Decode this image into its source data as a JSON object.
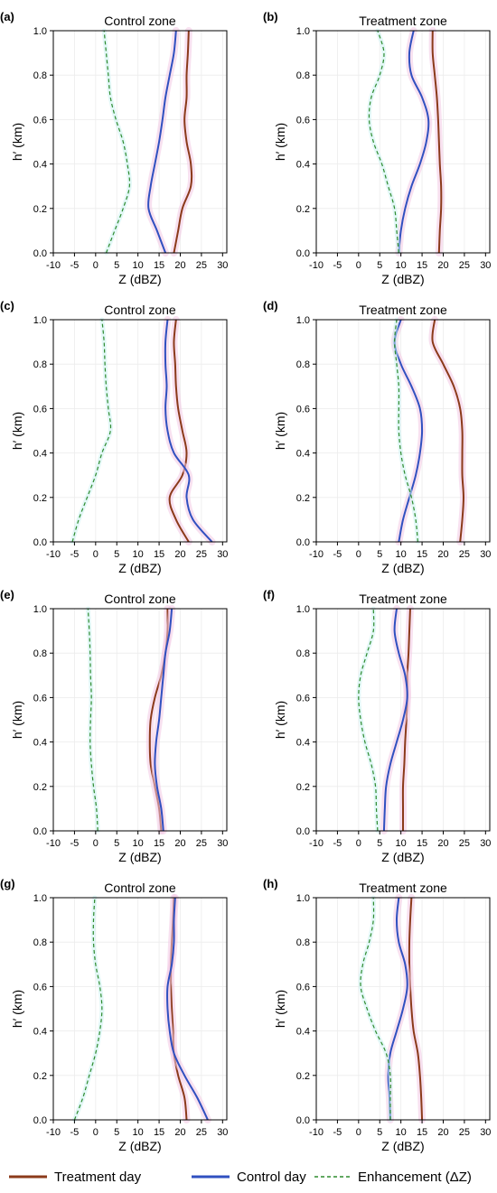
{
  "chart_data": [
    {
      "type": "line",
      "panel": "(a)",
      "title": "Control zone",
      "xlabel": "Z (dBZ)",
      "ylabel": "h′ (km)",
      "xlim": [
        -10,
        31
      ],
      "ylim": [
        0,
        1
      ],
      "xticks": [
        "-10",
        "-5",
        "0",
        "5",
        "10",
        "15",
        "20",
        "25",
        "30"
      ],
      "yticks": [
        "0.0",
        "0.2",
        "0.4",
        "0.6",
        "0.8",
        "1.0"
      ],
      "grid": true,
      "series": [
        {
          "name": "Treatment day",
          "color": "#8B3A1A",
          "dash": "",
          "y": [
            0,
            0.1,
            0.2,
            0.3,
            0.4,
            0.5,
            0.6,
            0.7,
            0.8,
            0.9,
            1.0
          ],
          "x": [
            18.5,
            19.5,
            20.5,
            22.5,
            22.5,
            21.5,
            21.0,
            21.5,
            21.5,
            21.8,
            22.0
          ]
        },
        {
          "name": "Control day",
          "color": "#3050C0",
          "dash": "",
          "y": [
            0,
            0.1,
            0.2,
            0.3,
            0.4,
            0.5,
            0.6,
            0.7,
            0.8,
            0.9,
            1.0
          ],
          "x": [
            16.5,
            14.5,
            12.5,
            13.0,
            14.0,
            15.0,
            15.8,
            16.5,
            17.5,
            18.5,
            19.0
          ]
        },
        {
          "name": "Enhancement (ΔZ)",
          "color": "#2E8B2E",
          "dash": "4,3",
          "y": [
            0,
            0.1,
            0.2,
            0.3,
            0.4,
            0.5,
            0.6,
            0.7,
            0.8,
            0.9,
            1.0
          ],
          "x": [
            2.5,
            4.5,
            6.5,
            8.0,
            7.5,
            6.5,
            4.8,
            3.5,
            3.0,
            2.5,
            2.0
          ]
        }
      ]
    },
    {
      "type": "line",
      "panel": "(b)",
      "title": "Treatment zone",
      "xlabel": "Z (dBZ)",
      "ylabel": "h′ (km)",
      "xlim": [
        -10,
        31
      ],
      "ylim": [
        0,
        1
      ],
      "xticks": [
        "-10",
        "-5",
        "0",
        "5",
        "10",
        "15",
        "20",
        "25",
        "30"
      ],
      "yticks": [
        "0.0",
        "0.2",
        "0.4",
        "0.6",
        "0.8",
        "1.0"
      ],
      "grid": true,
      "series": [
        {
          "name": "Treatment day",
          "color": "#8B3A1A",
          "dash": "",
          "y": [
            0,
            0.1,
            0.2,
            0.3,
            0.4,
            0.5,
            0.6,
            0.7,
            0.8,
            0.9,
            1.0
          ],
          "x": [
            19.0,
            19.2,
            19.5,
            19.5,
            19.2,
            19.0,
            18.8,
            18.5,
            18.0,
            17.5,
            17.5
          ]
        },
        {
          "name": "Control day",
          "color": "#3050C0",
          "dash": "",
          "y": [
            0,
            0.1,
            0.2,
            0.3,
            0.4,
            0.5,
            0.6,
            0.7,
            0.8,
            0.9,
            1.0
          ],
          "x": [
            9.5,
            10.0,
            11.0,
            12.5,
            14.5,
            16.0,
            16.5,
            15.0,
            12.5,
            12.0,
            13.0
          ]
        },
        {
          "name": "Enhancement (ΔZ)",
          "color": "#2E8B2E",
          "dash": "4,3",
          "y": [
            0,
            0.1,
            0.2,
            0.3,
            0.4,
            0.5,
            0.6,
            0.7,
            0.8,
            0.9,
            1.0
          ],
          "x": [
            9.5,
            9.0,
            8.5,
            7.0,
            5.5,
            3.5,
            2.5,
            3.0,
            5.0,
            6.0,
            4.5
          ]
        }
      ]
    },
    {
      "type": "line",
      "panel": "(c)",
      "title": "Control zone",
      "xlabel": "Z (dBZ)",
      "ylabel": "h′ (km)",
      "xlim": [
        -10,
        31
      ],
      "ylim": [
        0,
        1
      ],
      "xticks": [
        "-10",
        "-5",
        "0",
        "5",
        "10",
        "15",
        "20",
        "25",
        "30"
      ],
      "yticks": [
        "0.0",
        "0.2",
        "0.4",
        "0.6",
        "0.8",
        "1.0"
      ],
      "grid": true,
      "series": [
        {
          "name": "Treatment day",
          "color": "#8B3A1A",
          "dash": "",
          "y": [
            0,
            0.1,
            0.2,
            0.3,
            0.4,
            0.5,
            0.6,
            0.7,
            0.8,
            0.9,
            1.0
          ],
          "x": [
            22.0,
            19.0,
            17.5,
            20.5,
            21.5,
            20.5,
            19.5,
            19.0,
            18.8,
            18.5,
            19.0
          ]
        },
        {
          "name": "Control day",
          "color": "#3050C0",
          "dash": "",
          "y": [
            0,
            0.1,
            0.2,
            0.3,
            0.4,
            0.5,
            0.6,
            0.7,
            0.8,
            0.9,
            1.0
          ],
          "x": [
            27.5,
            23.0,
            21.5,
            22.0,
            18.5,
            17.0,
            16.5,
            16.8,
            16.5,
            16.5,
            17.0
          ]
        },
        {
          "name": "Enhancement (ΔZ)",
          "color": "#2E8B2E",
          "dash": "4,3",
          "y": [
            0,
            0.1,
            0.2,
            0.3,
            0.4,
            0.5,
            0.6,
            0.7,
            0.8,
            0.9,
            1.0
          ],
          "x": [
            -5.5,
            -4.0,
            -2.0,
            0.0,
            1.5,
            3.5,
            3.0,
            2.5,
            2.2,
            2.0,
            1.5
          ]
        }
      ]
    },
    {
      "type": "line",
      "panel": "(d)",
      "title": "Treatment zone",
      "xlabel": "Z (dBZ)",
      "ylabel": "h′ (km)",
      "xlim": [
        -10,
        31
      ],
      "ylim": [
        0,
        1
      ],
      "xticks": [
        "-10",
        "-5",
        "0",
        "5",
        "10",
        "15",
        "20",
        "25",
        "30"
      ],
      "yticks": [
        "0.0",
        "0.2",
        "0.4",
        "0.6",
        "0.8",
        "1.0"
      ],
      "grid": true,
      "series": [
        {
          "name": "Treatment day",
          "color": "#8B3A1A",
          "dash": "",
          "y": [
            0,
            0.1,
            0.2,
            0.3,
            0.4,
            0.5,
            0.6,
            0.7,
            0.8,
            0.9,
            1.0
          ],
          "x": [
            24.0,
            24.5,
            24.8,
            24.5,
            24.5,
            24.5,
            24.0,
            22.5,
            20.0,
            17.5,
            18.0
          ]
        },
        {
          "name": "Control day",
          "color": "#3050C0",
          "dash": "",
          "y": [
            0,
            0.1,
            0.2,
            0.3,
            0.4,
            0.5,
            0.6,
            0.7,
            0.8,
            0.9,
            1.0
          ],
          "x": [
            9.5,
            10.5,
            12.0,
            13.5,
            14.5,
            15.0,
            14.5,
            12.5,
            10.0,
            8.5,
            10.0
          ]
        },
        {
          "name": "Enhancement (ΔZ)",
          "color": "#2E8B2E",
          "dash": "4,3",
          "y": [
            0,
            0.1,
            0.2,
            0.3,
            0.4,
            0.5,
            0.6,
            0.7,
            0.8,
            0.9,
            1.0
          ],
          "x": [
            14.0,
            13.5,
            12.5,
            11.0,
            10.0,
            9.5,
            9.5,
            9.5,
            9.0,
            8.5,
            9.0
          ]
        }
      ]
    },
    {
      "type": "line",
      "panel": "(e)",
      "title": "Control zone",
      "xlabel": "Z (dBZ)",
      "ylabel": "h′ (km)",
      "xlim": [
        -10,
        31
      ],
      "ylim": [
        0,
        1
      ],
      "xticks": [
        "-10",
        "-5",
        "0",
        "5",
        "10",
        "15",
        "20",
        "25",
        "30"
      ],
      "yticks": [
        "0.0",
        "0.2",
        "0.4",
        "0.6",
        "0.8",
        "1.0"
      ],
      "grid": true,
      "series": [
        {
          "name": "Treatment day",
          "color": "#8B3A1A",
          "dash": "",
          "y": [
            0,
            0.1,
            0.2,
            0.3,
            0.4,
            0.5,
            0.6,
            0.7,
            0.8,
            0.9,
            1.0
          ],
          "x": [
            15.5,
            15.0,
            14.0,
            13.0,
            12.8,
            13.0,
            14.0,
            15.5,
            16.5,
            17.0,
            17.0
          ]
        },
        {
          "name": "Control day",
          "color": "#3050C0",
          "dash": "",
          "y": [
            0,
            0.1,
            0.2,
            0.3,
            0.4,
            0.5,
            0.6,
            0.7,
            0.8,
            0.9,
            1.0
          ],
          "x": [
            16.0,
            15.5,
            14.5,
            14.0,
            14.3,
            15.0,
            15.5,
            16.0,
            16.5,
            17.5,
            18.0
          ]
        },
        {
          "name": "Enhancement (ΔZ)",
          "color": "#2E8B2E",
          "dash": "4,3",
          "y": [
            0,
            0.1,
            0.2,
            0.3,
            0.4,
            0.5,
            0.6,
            0.7,
            0.8,
            0.9,
            1.0
          ],
          "x": [
            0.5,
            0.2,
            -0.5,
            -1.0,
            -1.3,
            -1.2,
            -1.0,
            -1.2,
            -1.3,
            -1.5,
            -1.8
          ]
        }
      ]
    },
    {
      "type": "line",
      "panel": "(f)",
      "title": "Treatment zone",
      "xlabel": "Z (dBZ)",
      "ylabel": "h′ (km)",
      "xlim": [
        -10,
        31
      ],
      "ylim": [
        0,
        1
      ],
      "xticks": [
        "-10",
        "-5",
        "0",
        "5",
        "10",
        "15",
        "20",
        "25",
        "30"
      ],
      "yticks": [
        "0.0",
        "0.2",
        "0.4",
        "0.6",
        "0.8",
        "1.0"
      ],
      "grid": true,
      "series": [
        {
          "name": "Treatment day",
          "color": "#8B3A1A",
          "dash": "",
          "y": [
            0,
            0.1,
            0.2,
            0.3,
            0.4,
            0.5,
            0.6,
            0.7,
            0.8,
            0.9,
            1.0
          ],
          "x": [
            10.5,
            10.5,
            10.5,
            10.8,
            11.0,
            11.3,
            11.5,
            11.5,
            11.8,
            12.0,
            12.2
          ]
        },
        {
          "name": "Control day",
          "color": "#3050C0",
          "dash": "",
          "y": [
            0,
            0.1,
            0.2,
            0.3,
            0.4,
            0.5,
            0.6,
            0.7,
            0.8,
            0.9,
            1.0
          ],
          "x": [
            6.0,
            6.2,
            6.5,
            7.5,
            9.0,
            10.5,
            11.5,
            11.0,
            9.5,
            8.5,
            9.0
          ]
        },
        {
          "name": "Enhancement (ΔZ)",
          "color": "#2E8B2E",
          "dash": "4,3",
          "y": [
            0,
            0.1,
            0.2,
            0.3,
            0.4,
            0.5,
            0.6,
            0.7,
            0.8,
            0.9,
            1.0
          ],
          "x": [
            4.5,
            4.2,
            4.0,
            3.0,
            1.5,
            0.5,
            0.0,
            0.5,
            2.0,
            3.5,
            3.5
          ]
        }
      ]
    },
    {
      "type": "line",
      "panel": "(g)",
      "title": "Control zone",
      "xlabel": "Z (dBZ)",
      "ylabel": "h′ (km)",
      "xlim": [
        -10,
        31
      ],
      "ylim": [
        0,
        1
      ],
      "xticks": [
        "-10",
        "-5",
        "0",
        "5",
        "10",
        "15",
        "20",
        "25",
        "30"
      ],
      "yticks": [
        "0.0",
        "0.2",
        "0.4",
        "0.6",
        "0.8",
        "1.0"
      ],
      "grid": true,
      "series": [
        {
          "name": "Treatment day",
          "color": "#8B3A1A",
          "dash": "",
          "y": [
            0,
            0.1,
            0.2,
            0.3,
            0.4,
            0.5,
            0.6,
            0.7,
            0.8,
            0.9,
            1.0
          ],
          "x": [
            21.5,
            21.0,
            19.5,
            18.5,
            18.3,
            18.0,
            17.8,
            17.8,
            18.0,
            18.3,
            18.5
          ]
        },
        {
          "name": "Control day",
          "color": "#3050C0",
          "dash": "",
          "y": [
            0,
            0.1,
            0.2,
            0.3,
            0.4,
            0.5,
            0.6,
            0.7,
            0.8,
            0.9,
            1.0
          ],
          "x": [
            26.5,
            24.0,
            21.0,
            18.5,
            17.5,
            17.0,
            17.0,
            18.0,
            18.5,
            18.5,
            18.8
          ]
        },
        {
          "name": "Enhancement (ΔZ)",
          "color": "#2E8B2E",
          "dash": "4,3",
          "y": [
            0,
            0.1,
            0.2,
            0.3,
            0.4,
            0.5,
            0.6,
            0.7,
            0.8,
            0.9,
            1.0
          ],
          "x": [
            -5.0,
            -3.0,
            -1.5,
            0.0,
            1.0,
            1.5,
            1.0,
            0.0,
            -0.5,
            -0.5,
            -0.2
          ]
        }
      ]
    },
    {
      "type": "line",
      "panel": "(h)",
      "title": "Treatment zone",
      "xlabel": "Z (dBZ)",
      "ylabel": "h′ (km)",
      "xlim": [
        -10,
        31
      ],
      "ylim": [
        0,
        1
      ],
      "xticks": [
        "-10",
        "-5",
        "0",
        "5",
        "10",
        "15",
        "20",
        "25",
        "30"
      ],
      "yticks": [
        "0.0",
        "0.2",
        "0.4",
        "0.6",
        "0.8",
        "1.0"
      ],
      "grid": true,
      "series": [
        {
          "name": "Treatment day",
          "color": "#8B3A1A",
          "dash": "",
          "y": [
            0,
            0.1,
            0.2,
            0.3,
            0.4,
            0.5,
            0.6,
            0.7,
            0.8,
            0.9,
            1.0
          ],
          "x": [
            15.0,
            14.8,
            14.5,
            14.0,
            13.0,
            12.5,
            12.2,
            12.0,
            12.0,
            12.2,
            12.5
          ]
        },
        {
          "name": "Control day",
          "color": "#3050C0",
          "dash": "",
          "y": [
            0,
            0.1,
            0.2,
            0.3,
            0.4,
            0.5,
            0.6,
            0.7,
            0.8,
            0.9,
            1.0
          ],
          "x": [
            7.5,
            7.3,
            7.0,
            7.5,
            9.0,
            10.5,
            11.5,
            11.0,
            9.5,
            9.0,
            9.5
          ]
        },
        {
          "name": "Enhancement (ΔZ)",
          "color": "#2E8B2E",
          "dash": "4,3",
          "y": [
            0,
            0.1,
            0.2,
            0.3,
            0.4,
            0.5,
            0.6,
            0.7,
            0.8,
            0.9,
            1.0
          ],
          "x": [
            7.5,
            7.5,
            7.5,
            6.5,
            4.0,
            2.0,
            0.5,
            1.0,
            2.5,
            3.5,
            3.5
          ]
        }
      ]
    }
  ],
  "legend": {
    "items": [
      {
        "label": "Treatment day",
        "color": "#8B3A1A",
        "dash": ""
      },
      {
        "label": "Control day",
        "color": "#3050C0",
        "dash": ""
      },
      {
        "label": "Enhancement (ΔZ)",
        "color": "#2E8B2E",
        "dash": "4,3"
      }
    ]
  }
}
